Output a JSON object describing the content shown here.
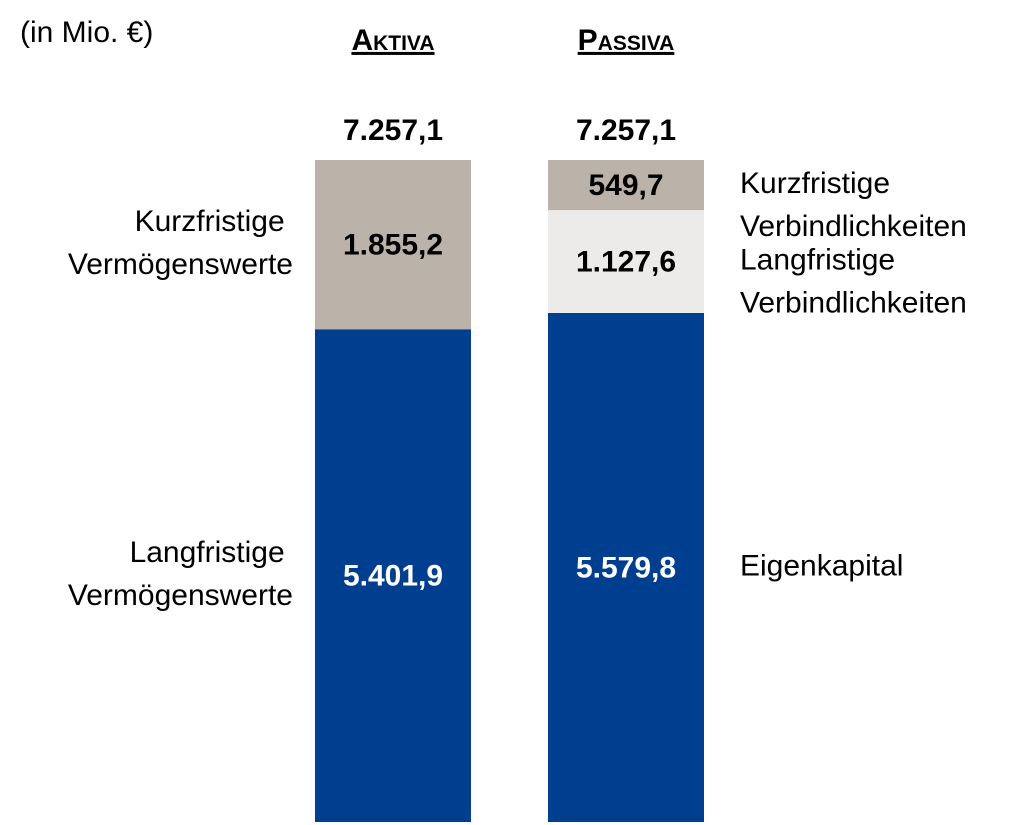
{
  "chart_data": {
    "type": "stacked-bar",
    "unit": "(in Mio. €)",
    "bars": [
      {
        "category": "Aktiva",
        "total": 7257.1,
        "total_label": "7.257,1",
        "segments": [
          {
            "name": "Langfristige Vermögenswerte",
            "value": 5401.9,
            "value_label": "5.401,9",
            "color": "#003f8f"
          },
          {
            "name": "Kurzfristige Vermögenswerte",
            "value": 1855.2,
            "value_label": "1.855,2",
            "color": "#bbb3aa"
          }
        ]
      },
      {
        "category": "Passiva",
        "total": 7257.1,
        "total_label": "7.257,1",
        "segments": [
          {
            "name": "Eigenkapital",
            "value": 5579.8,
            "value_label": "5.579,8",
            "color": "#003f8f"
          },
          {
            "name": "Langfristige Verbindlichkeiten",
            "value": 1127.6,
            "value_label": "1.127,6",
            "color": "#ecebe9"
          },
          {
            "name": "Kurzfristige Verbindlichkeiten",
            "value": 549.7,
            "value_label": "549,7",
            "color": "#bbb3aa"
          }
        ]
      }
    ]
  }
}
